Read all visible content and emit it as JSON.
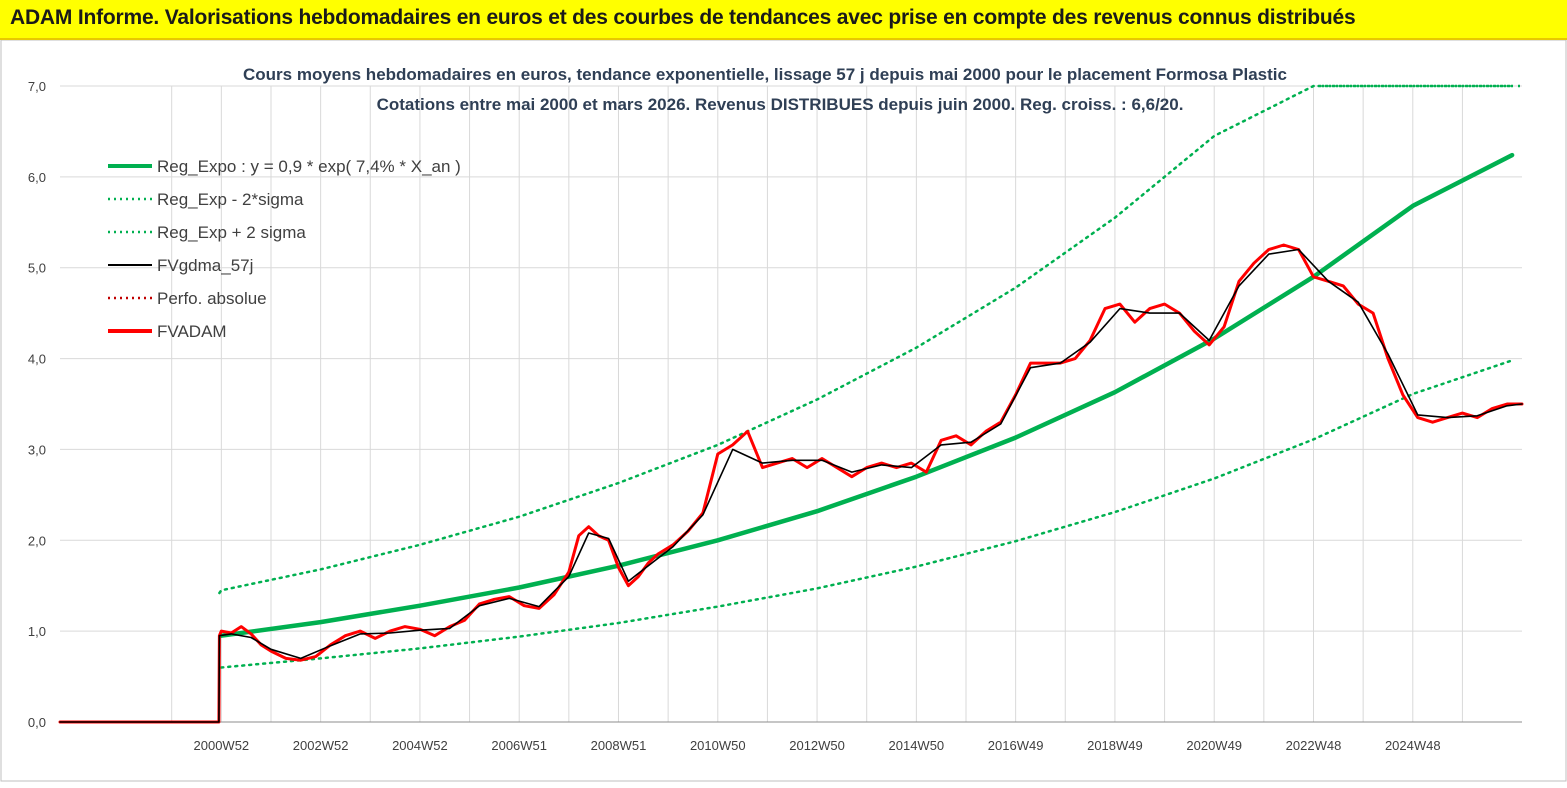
{
  "banner": {
    "title": "ADAM Informe. Valorisations hebdomadaires en euros et des courbes de tendances avec prise en compte des revenus connus distribués"
  },
  "colors": {
    "banner_bg": "#ffff00",
    "reg_expo": "#00b050",
    "bands": "#00b050",
    "smooth": "#000000",
    "perfo": "#c00000",
    "fvadam": "#ff0000",
    "grid": "#d9d9d9"
  },
  "chart_data": {
    "type": "line",
    "title": "Cours moyens hebdomadaires en euros, tendance exponentielle, lissage 57 j depuis mai 2000 pour le placement Formosa Plastic",
    "subtitle": "Cotations entre mai 2000 et mars 2026. Revenus DISTRIBUES depuis juin 2000. Reg. croiss. : 6,6/20.",
    "xlabel": "",
    "ylabel": "",
    "ylim": [
      0,
      7
    ],
    "yticks": [
      "0,0",
      "1,0",
      "2,0",
      "3,0",
      "4,0",
      "5,0",
      "6,0",
      "7,0"
    ],
    "x_range_years": [
      1996.75,
      2026.2
    ],
    "xtick_labels": [
      "2000W52",
      "2002W52",
      "2004W52",
      "2006W51",
      "2008W51",
      "2010W50",
      "2012W50",
      "2014W50",
      "2016W49",
      "2018W49",
      "2020W49",
      "2022W48",
      "2024W48"
    ],
    "xtick_years": [
      2000.0,
      2002.0,
      2004.0,
      2006.0,
      2008.0,
      2010.0,
      2012.0,
      2014.0,
      2016.0,
      2018.0,
      2020.0,
      2022.0,
      2024.0
    ],
    "grid": true,
    "legend_position": "top-left",
    "legend": [
      {
        "label": "Reg_Expo : y = 0,9 * exp( 7,4% *  X_an )",
        "style": "thick-solid",
        "color": "#00b050"
      },
      {
        "label": "Reg_Exp - 2*sigma",
        "style": "dotted",
        "color": "#00b050"
      },
      {
        "label": "Reg_Exp + 2 sigma",
        "style": "dotted",
        "color": "#00b050"
      },
      {
        "label": "FVgdma_57j",
        "style": "solid",
        "color": "#000000"
      },
      {
        "label": "Perfo. absolue",
        "style": "dotted",
        "color": "#c00000"
      },
      {
        "label": "FVADAM",
        "style": "thick-solid",
        "color": "#ff0000"
      }
    ],
    "series": [
      {
        "name": "FVADAM",
        "x": [
          1996.75,
          1999.95,
          1999.96,
          2000.0,
          2000.2,
          2000.4,
          2000.6,
          2000.8,
          2001.0,
          2001.3,
          2001.6,
          2001.9,
          2002.2,
          2002.5,
          2002.8,
          2003.1,
          2003.4,
          2003.7,
          2004.0,
          2004.3,
          2004.6,
          2004.9,
          2005.2,
          2005.5,
          2005.8,
          2006.1,
          2006.4,
          2006.7,
          2007.0,
          2007.2,
          2007.4,
          2007.6,
          2007.8,
          2008.0,
          2008.2,
          2008.4,
          2008.6,
          2008.8,
          2009.1,
          2009.4,
          2009.7,
          2010.0,
          2010.3,
          2010.6,
          2010.9,
          2011.2,
          2011.5,
          2011.8,
          2012.1,
          2012.4,
          2012.7,
          2013.0,
          2013.3,
          2013.6,
          2013.9,
          2014.2,
          2014.5,
          2014.8,
          2015.1,
          2015.4,
          2015.7,
          2016.0,
          2016.3,
          2016.6,
          2016.9,
          2017.2,
          2017.5,
          2017.8,
          2018.1,
          2018.4,
          2018.7,
          2019.0,
          2019.3,
          2019.6,
          2019.9,
          2020.2,
          2020.5,
          2020.8,
          2021.1,
          2021.4,
          2021.7,
          2022.0,
          2022.3,
          2022.6,
          2022.9,
          2023.2,
          2023.5,
          2023.8,
          2024.1,
          2024.4,
          2024.7,
          2025.0,
          2025.3,
          2025.6,
          2025.9,
          2026.2
        ],
        "values": [
          0.0,
          0.0,
          0.95,
          1.0,
          0.98,
          1.05,
          0.97,
          0.85,
          0.78,
          0.7,
          0.68,
          0.72,
          0.85,
          0.95,
          1.0,
          0.92,
          1.0,
          1.05,
          1.02,
          0.95,
          1.05,
          1.12,
          1.3,
          1.35,
          1.38,
          1.28,
          1.25,
          1.4,
          1.65,
          2.05,
          2.15,
          2.05,
          2.0,
          1.7,
          1.5,
          1.6,
          1.75,
          1.85,
          1.95,
          2.1,
          2.3,
          2.95,
          3.05,
          3.2,
          2.8,
          2.85,
          2.9,
          2.8,
          2.9,
          2.8,
          2.7,
          2.8,
          2.85,
          2.8,
          2.85,
          2.75,
          3.1,
          3.15,
          3.05,
          3.2,
          3.3,
          3.6,
          3.95,
          3.95,
          3.95,
          4.0,
          4.2,
          4.55,
          4.6,
          4.4,
          4.55,
          4.6,
          4.5,
          4.3,
          4.15,
          4.35,
          4.85,
          5.05,
          5.2,
          5.25,
          5.2,
          4.9,
          4.85,
          4.8,
          4.6,
          4.5,
          4.0,
          3.6,
          3.35,
          3.3,
          3.35,
          3.4,
          3.35,
          3.45,
          3.5,
          3.5
        ]
      },
      {
        "name": "FVgdma_57j",
        "x": [
          1996.75,
          1999.95,
          1999.96,
          2000.2,
          2000.6,
          2001.0,
          2001.6,
          2002.2,
          2002.8,
          2003.4,
          2004.0,
          2004.6,
          2005.2,
          2005.8,
          2006.4,
          2007.0,
          2007.4,
          2007.8,
          2008.2,
          2008.6,
          2009.1,
          2009.7,
          2010.3,
          2010.9,
          2011.5,
          2012.1,
          2012.7,
          2013.3,
          2013.9,
          2014.5,
          2015.1,
          2015.7,
          2016.3,
          2016.9,
          2017.5,
          2018.1,
          2018.7,
          2019.3,
          2019.9,
          2020.5,
          2021.1,
          2021.7,
          2022.3,
          2022.9,
          2023.5,
          2024.1,
          2024.7,
          2025.3,
          2025.9,
          2026.2
        ],
        "values": [
          0.0,
          0.0,
          0.95,
          0.97,
          0.93,
          0.8,
          0.7,
          0.84,
          0.97,
          0.98,
          1.01,
          1.03,
          1.28,
          1.36,
          1.27,
          1.6,
          2.08,
          2.02,
          1.55,
          1.72,
          1.93,
          2.28,
          3.0,
          2.85,
          2.88,
          2.88,
          2.75,
          2.83,
          2.8,
          3.05,
          3.08,
          3.28,
          3.9,
          3.95,
          4.18,
          4.55,
          4.5,
          4.5,
          4.2,
          4.8,
          5.15,
          5.2,
          4.85,
          4.62,
          4.05,
          3.38,
          3.35,
          3.37,
          3.48,
          3.5
        ]
      },
      {
        "name": "Reg_Expo : y = 0,9 * exp( 7,4% *  X_an )",
        "x": [
          2000.0,
          2002.0,
          2004.0,
          2006.0,
          2008.0,
          2010.0,
          2012.0,
          2014.0,
          2016.0,
          2018.0,
          2020.0,
          2022.0,
          2024.0,
          2026.0
        ],
        "values": [
          0.95,
          1.1,
          1.28,
          1.48,
          1.72,
          2.0,
          2.32,
          2.7,
          3.13,
          3.63,
          4.22,
          4.9,
          5.68,
          6.24
        ]
      },
      {
        "name": "Reg_Exp - 2*sigma",
        "x": [
          1999.96,
          2000.0,
          2002.0,
          2004.0,
          2006.0,
          2008.0,
          2010.0,
          2012.0,
          2014.0,
          2016.0,
          2018.0,
          2020.0,
          2022.0,
          2024.0,
          2026.0
        ],
        "values": [
          1.42,
          1.45,
          1.68,
          1.95,
          2.26,
          2.63,
          3.05,
          3.55,
          4.12,
          4.78,
          5.55,
          6.45,
          7.0,
          7.0,
          7.0
        ]
      },
      {
        "name": "Reg_Exp + 2 sigma",
        "x": [
          2000.0,
          2002.0,
          2004.0,
          2006.0,
          2008.0,
          2010.0,
          2012.0,
          2014.0,
          2016.0,
          2018.0,
          2020.0,
          2022.0,
          2024.0,
          2026.0
        ],
        "values": [
          0.6,
          0.7,
          0.81,
          0.94,
          1.09,
          1.27,
          1.47,
          1.71,
          1.99,
          2.31,
          2.68,
          3.11,
          3.61,
          3.98
        ]
      }
    ]
  }
}
